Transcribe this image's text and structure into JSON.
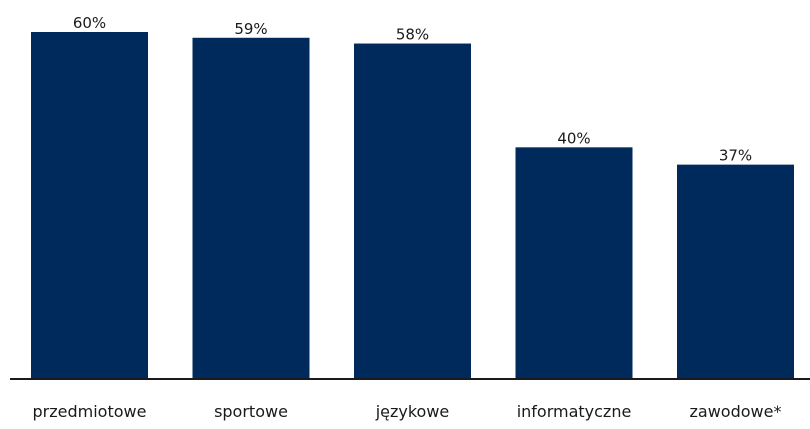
{
  "chart_data": {
    "type": "bar",
    "categories": [
      "przedmiotowe",
      "sportowe",
      "językowe",
      "informatyczne",
      "zawodowe*"
    ],
    "values": [
      60,
      59,
      58,
      40,
      37
    ],
    "value_labels": [
      "60%",
      "59%",
      "58%",
      "40%",
      "37%"
    ],
    "unit": "%",
    "ylim": [
      0,
      60
    ],
    "grid": false,
    "legend": "none",
    "colors": {
      "bar": "#002a5c",
      "axis": "#1a1a1a",
      "text": "#1a1a1a"
    }
  }
}
